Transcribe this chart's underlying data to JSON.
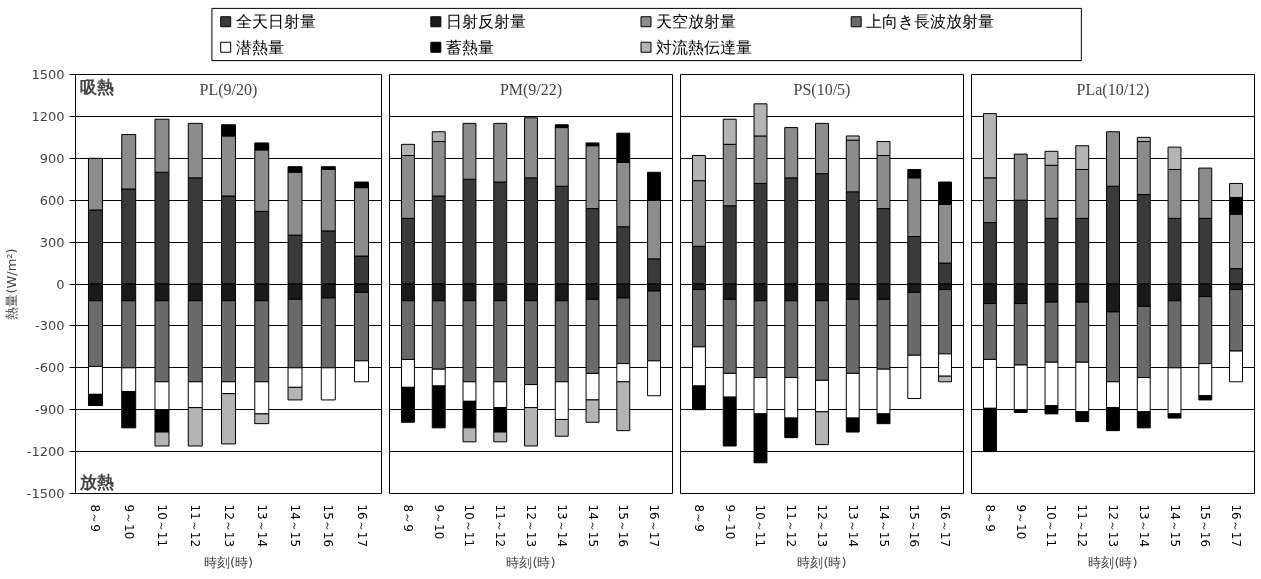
{
  "chart_data": [
    {
      "type": "bar",
      "stacked": true,
      "title": "PL(9/20)",
      "xlabel": "時刻(時)",
      "ylabel": "熱量(W/m²)",
      "legend": "top",
      "grid": "y",
      "annotations": [
        "吸熱",
        "放熱"
      ],
      "categories": [
        "8～9",
        "9～10",
        "10～11",
        "11～12",
        "12～13",
        "13～14",
        "14～15",
        "15～16",
        "16～17"
      ],
      "ylim": [
        -1500,
        1500
      ],
      "yticks": [
        1500,
        1200,
        900,
        600,
        300,
        0,
        -300,
        -600,
        -900,
        -1200,
        -1500
      ],
      "series": [
        {
          "name": "全天日射量",
          "color": "#3a3a3a",
          "values": [
            530,
            680,
            800,
            760,
            630,
            520,
            350,
            380,
            200
          ]
        },
        {
          "name": "日射反射量",
          "color": "#1a1a1a",
          "values": [
            -120,
            -120,
            -120,
            -120,
            -120,
            -120,
            -110,
            -100,
            -60
          ]
        },
        {
          "name": "天空放射量",
          "color": "#8c8c8c",
          "values": [
            370,
            390,
            380,
            390,
            430,
            440,
            450,
            440,
            490
          ]
        },
        {
          "name": "上向き長波放射量",
          "color": "#6a6a6a",
          "values": [
            -470,
            -480,
            -580,
            -580,
            -580,
            -580,
            -490,
            -500,
            -490
          ]
        },
        {
          "name": "潜熱量",
          "color": "#ffffff",
          "values": [
            -200,
            -170,
            -200,
            -185,
            -85,
            -230,
            -140,
            -230,
            -150
          ]
        },
        {
          "name": "蓄熱量",
          "color": "#000000",
          "values": [
            -80,
            -260,
            -160,
            null,
            80,
            50,
            40,
            20,
            40
          ]
        },
        {
          "name": "対流熱伝達量",
          "color": "#b4b4b4",
          "values": [
            null,
            null,
            -100,
            -275,
            -360,
            -70,
            -90,
            null,
            null
          ]
        }
      ]
    },
    {
      "type": "bar",
      "stacked": true,
      "title": "PM(9/22)",
      "xlabel": "時刻(時)",
      "grid": "y",
      "tick_labels": "x",
      "categories": [
        "8～9",
        "9～10",
        "10～11",
        "11～12",
        "12～13",
        "13～14",
        "14～15",
        "15～16",
        "16～17"
      ],
      "ylim": [
        -1500,
        1500
      ],
      "yticks": [
        1500,
        1200,
        900,
        600,
        300,
        0,
        -300,
        -600,
        -900,
        -1200,
        -1500
      ],
      "series": [
        {
          "color": "#3a3a3a",
          "values": [
            470,
            630,
            750,
            730,
            760,
            700,
            540,
            410,
            180
          ]
        },
        {
          "color": "#1a1a1a",
          "values": [
            -120,
            -120,
            -120,
            -120,
            -120,
            -120,
            -110,
            -100,
            -50
          ]
        },
        {
          "color": "#8c8c8c",
          "values": [
            450,
            390,
            400,
            420,
            430,
            420,
            450,
            460,
            420
          ]
        },
        {
          "color": "#6a6a6a",
          "values": [
            -420,
            -490,
            -580,
            -580,
            -600,
            -580,
            -530,
            -470,
            -500
          ]
        },
        {
          "color": "#ffffff",
          "values": [
            -200,
            -120,
            -140,
            -185,
            -165,
            -270,
            -190,
            -130,
            -250
          ]
        },
        {
          "color": "#000000",
          "values": [
            -250,
            -300,
            -190,
            -175,
            null,
            20,
            20,
            210,
            200
          ]
        },
        {
          "color": "#b4b4b4",
          "values": [
            80,
            70,
            -100,
            -70,
            -275,
            -120,
            -160,
            -350,
            null
          ]
        }
      ]
    },
    {
      "type": "bar",
      "stacked": true,
      "title": "PS(10/5)",
      "xlabel": "時刻(時)",
      "grid": "y",
      "tick_labels": "x",
      "categories": [
        "8～9",
        "9～10",
        "10～11",
        "11～12",
        "12～13",
        "13～14",
        "14～15",
        "15～16",
        "16～17"
      ],
      "ylim": [
        -1500,
        1500
      ],
      "yticks": [
        1500,
        1200,
        900,
        600,
        300,
        0,
        -300,
        -600,
        -900,
        -1200,
        -1500
      ],
      "series": [
        {
          "color": "#3a3a3a",
          "values": [
            270,
            560,
            720,
            760,
            790,
            660,
            540,
            340,
            150
          ]
        },
        {
          "color": "#1a1a1a",
          "values": [
            -40,
            -110,
            -120,
            -120,
            -120,
            -110,
            -110,
            -60,
            -40
          ]
        },
        {
          "color": "#8c8c8c",
          "values": [
            470,
            440,
            340,
            360,
            360,
            370,
            380,
            420,
            420
          ]
        },
        {
          "color": "#6a6a6a",
          "values": [
            -410,
            -530,
            -550,
            -550,
            -570,
            -530,
            -500,
            -450,
            -460
          ]
        },
        {
          "color": "#ffffff",
          "values": [
            -280,
            -170,
            -260,
            -290,
            -225,
            -320,
            -320,
            -310,
            -160
          ]
        },
        {
          "color": "#000000",
          "values": [
            -170,
            -350,
            -350,
            -140,
            null,
            -100,
            -70,
            60,
            160
          ]
        },
        {
          "color": "#b4b4b4",
          "values": [
            180,
            180,
            230,
            null,
            -235,
            30,
            100,
            null,
            -40
          ]
        }
      ]
    },
    {
      "type": "bar",
      "stacked": true,
      "title": "PLa(10/12)",
      "xlabel": "時刻(時)",
      "grid": "y",
      "tick_labels": "x",
      "categories": [
        "8～9",
        "9～10",
        "10～11",
        "11～12",
        "12～13",
        "13～14",
        "14～15",
        "15～16",
        "16～17"
      ],
      "ylim": [
        -1500,
        1500
      ],
      "yticks": [
        1500,
        1200,
        900,
        600,
        300,
        0,
        -300,
        -600,
        -900,
        -1200,
        -1500
      ],
      "series": [
        {
          "color": "#3a3a3a",
          "values": [
            440,
            600,
            470,
            470,
            700,
            640,
            470,
            470,
            110
          ]
        },
        {
          "color": "#1a1a1a",
          "values": [
            -140,
            -140,
            -130,
            -130,
            -200,
            -160,
            -120,
            -90,
            -40
          ]
        },
        {
          "color": "#8c8c8c",
          "values": [
            320,
            330,
            380,
            350,
            390,
            380,
            350,
            360,
            390
          ]
        },
        {
          "color": "#6a6a6a",
          "values": [
            -400,
            -440,
            -430,
            -430,
            -500,
            -510,
            -480,
            -480,
            -440
          ]
        },
        {
          "color": "#ffffff",
          "values": [
            -350,
            -320,
            -310,
            -355,
            -185,
            -245,
            -330,
            -230,
            -220
          ]
        },
        {
          "color": "#000000",
          "values": [
            -310,
            -20,
            -60,
            -70,
            -165,
            -115,
            -30,
            -30,
            120
          ]
        },
        {
          "color": "#b4b4b4",
          "values": [
            460,
            null,
            100,
            170,
            null,
            30,
            160,
            null,
            100
          ]
        }
      ]
    }
  ]
}
